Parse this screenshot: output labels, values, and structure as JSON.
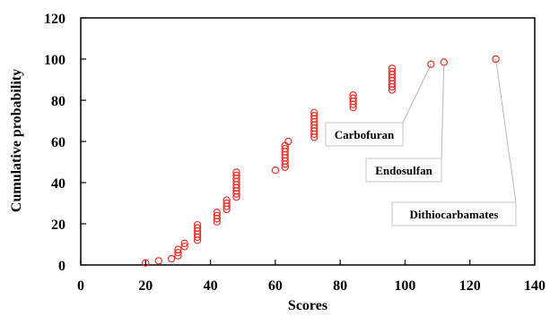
{
  "chart_data": {
    "type": "scatter",
    "xlabel": "Scores",
    "ylabel": "Cumulative probability",
    "xlim": [
      0,
      140
    ],
    "ylim": [
      0,
      120
    ],
    "xticks": [
      0,
      20,
      40,
      60,
      80,
      100,
      120,
      140
    ],
    "yticks": [
      0,
      20,
      40,
      60,
      80,
      100,
      120
    ],
    "grid": false,
    "marker": "open-circle",
    "marker_color": "#e8302a",
    "series": [
      {
        "points": [
          {
            "x": 20,
            "y": 1
          },
          {
            "x": 24,
            "y": 2
          },
          {
            "x": 28,
            "y": 3
          },
          {
            "x": 30,
            "y": 4.5
          },
          {
            "x": 30,
            "y": 6
          },
          {
            "x": 30,
            "y": 7.5
          },
          {
            "x": 32,
            "y": 9
          },
          {
            "x": 32,
            "y": 10.5
          },
          {
            "x": 36,
            "y": 12
          },
          {
            "x": 36,
            "y": 13.5
          },
          {
            "x": 36,
            "y": 15
          },
          {
            "x": 36,
            "y": 16.5
          },
          {
            "x": 36,
            "y": 18
          },
          {
            "x": 36,
            "y": 19.5
          },
          {
            "x": 42,
            "y": 21
          },
          {
            "x": 42,
            "y": 22.5
          },
          {
            "x": 42,
            "y": 24
          },
          {
            "x": 42,
            "y": 25.5
          },
          {
            "x": 45,
            "y": 27
          },
          {
            "x": 45,
            "y": 28.5
          },
          {
            "x": 45,
            "y": 30
          },
          {
            "x": 45,
            "y": 31.5
          },
          {
            "x": 48,
            "y": 33
          },
          {
            "x": 48,
            "y": 34.5
          },
          {
            "x": 48,
            "y": 36
          },
          {
            "x": 48,
            "y": 37.5
          },
          {
            "x": 48,
            "y": 39
          },
          {
            "x": 48,
            "y": 40.5
          },
          {
            "x": 48,
            "y": 42
          },
          {
            "x": 48,
            "y": 43.5
          },
          {
            "x": 48,
            "y": 45
          },
          {
            "x": 60,
            "y": 46
          },
          {
            "x": 63,
            "y": 47.5
          },
          {
            "x": 63,
            "y": 49
          },
          {
            "x": 63,
            "y": 50.5
          },
          {
            "x": 63,
            "y": 52
          },
          {
            "x": 63,
            "y": 53.5
          },
          {
            "x": 63,
            "y": 55
          },
          {
            "x": 63,
            "y": 56.5
          },
          {
            "x": 63,
            "y": 58
          },
          {
            "x": 64,
            "y": 60
          },
          {
            "x": 72,
            "y": 62
          },
          {
            "x": 72,
            "y": 63.5
          },
          {
            "x": 72,
            "y": 65
          },
          {
            "x": 72,
            "y": 66.5
          },
          {
            "x": 72,
            "y": 68
          },
          {
            "x": 72,
            "y": 69.5
          },
          {
            "x": 72,
            "y": 71
          },
          {
            "x": 72,
            "y": 72.5
          },
          {
            "x": 72,
            "y": 74
          },
          {
            "x": 84,
            "y": 76.5
          },
          {
            "x": 84,
            "y": 78
          },
          {
            "x": 84,
            "y": 79.5
          },
          {
            "x": 84,
            "y": 81
          },
          {
            "x": 84,
            "y": 82.5
          },
          {
            "x": 96,
            "y": 85
          },
          {
            "x": 96,
            "y": 86.5
          },
          {
            "x": 96,
            "y": 88
          },
          {
            "x": 96,
            "y": 89.5
          },
          {
            "x": 96,
            "y": 91
          },
          {
            "x": 96,
            "y": 92.5
          },
          {
            "x": 96,
            "y": 94
          },
          {
            "x": 96,
            "y": 95.5
          },
          {
            "x": 108,
            "y": 97.5
          },
          {
            "x": 112,
            "y": 98.5
          },
          {
            "x": 128,
            "y": 100
          }
        ]
      }
    ],
    "annotations": [
      {
        "text": "Carbofuran",
        "point_x": 108,
        "point_y": 97.5
      },
      {
        "text": "Endosulfan",
        "point_x": 112,
        "point_y": 98.5
      },
      {
        "text": "Dithiocarbamates",
        "point_x": 128,
        "point_y": 100
      }
    ]
  }
}
